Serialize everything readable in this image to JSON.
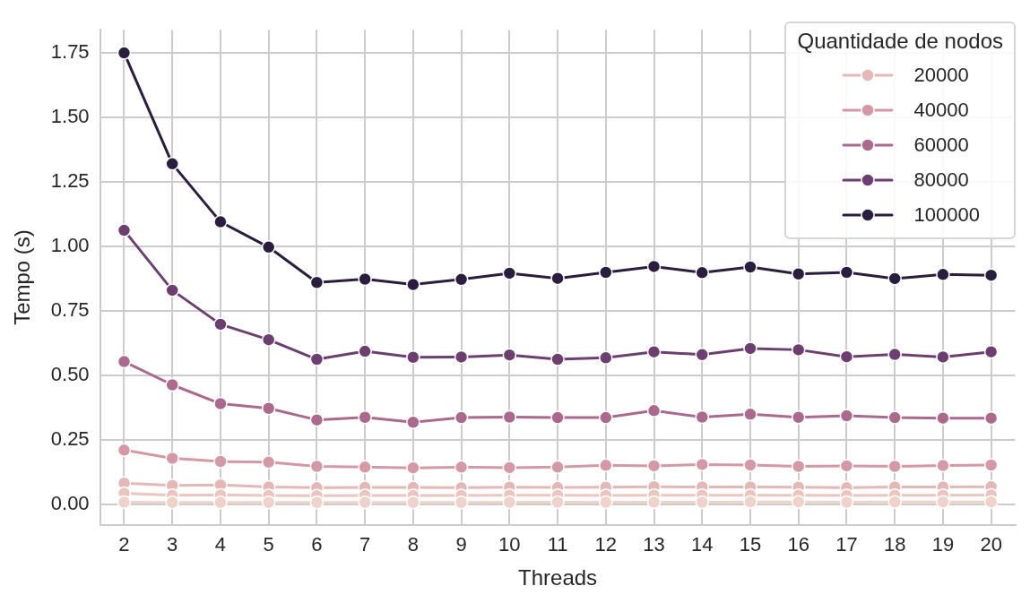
{
  "chart_data": {
    "type": "line",
    "xlabel": "Threads",
    "ylabel": "Tempo (s)",
    "legend_title": "Quantidade de nodos",
    "legend": "top right",
    "grid": true,
    "marker": "circle",
    "line_style": "solid",
    "categories": [
      "2",
      "3",
      "4",
      "5",
      "6",
      "7",
      "8",
      "9",
      "10",
      "11",
      "12",
      "13",
      "14",
      "15",
      "16",
      "17",
      "18",
      "19",
      "20"
    ],
    "ylim": [
      -0.08,
      1.84
    ],
    "yticks": [
      {
        "value": 0,
        "label": "0.00"
      },
      {
        "value": 0.25,
        "label": "0.25"
      },
      {
        "value": 0.5,
        "label": "0.50"
      },
      {
        "value": 0.75,
        "label": "0.75"
      },
      {
        "value": 1,
        "label": "1.00"
      },
      {
        "value": 1.25,
        "label": "1.25"
      },
      {
        "value": 1.5,
        "label": "1.50"
      },
      {
        "value": 1.75,
        "label": "1.75"
      }
    ],
    "series": [
      {
        "color": "#efd3cb",
        "values": [
          0.008,
          0.007,
          0.007,
          0.007,
          0.007,
          0.007,
          0.007,
          0.007,
          0.008,
          0.008,
          0.008,
          0.008,
          0.008,
          0.009,
          0.009,
          0.008,
          0.009,
          0.009,
          0.009
        ]
      },
      {
        "color": "#ebc6c0",
        "values": [
          0.043,
          0.035,
          0.036,
          0.034,
          0.033,
          0.034,
          0.034,
          0.034,
          0.035,
          0.035,
          0.034,
          0.035,
          0.035,
          0.035,
          0.035,
          0.034,
          0.035,
          0.035,
          0.036
        ]
      },
      {
        "name": "20000",
        "color": "#e5b8b8",
        "values": [
          0.082,
          0.073,
          0.075,
          0.067,
          0.064,
          0.065,
          0.065,
          0.064,
          0.066,
          0.065,
          0.066,
          0.068,
          0.067,
          0.067,
          0.066,
          0.064,
          0.067,
          0.067,
          0.068
        ]
      },
      {
        "name": "40000",
        "color": "#d499a5",
        "values": [
          0.21,
          0.178,
          0.166,
          0.163,
          0.147,
          0.144,
          0.141,
          0.144,
          0.142,
          0.144,
          0.151,
          0.149,
          0.154,
          0.152,
          0.147,
          0.149,
          0.147,
          0.15,
          0.152
        ]
      },
      {
        "name": "60000",
        "color": "#ab6a8d",
        "values": [
          0.553,
          0.463,
          0.39,
          0.372,
          0.327,
          0.337,
          0.318,
          0.336,
          0.338,
          0.336,
          0.336,
          0.363,
          0.338,
          0.349,
          0.337,
          0.343,
          0.336,
          0.334,
          0.334
        ]
      },
      {
        "name": "80000",
        "color": "#6c3f70",
        "values": [
          1.062,
          0.83,
          0.698,
          0.638,
          0.562,
          0.593,
          0.57,
          0.571,
          0.579,
          0.562,
          0.568,
          0.591,
          0.58,
          0.604,
          0.599,
          0.572,
          0.581,
          0.571,
          0.591
        ]
      },
      {
        "name": "100000",
        "color": "#2b1d3e",
        "values": [
          1.75,
          1.32,
          1.095,
          0.997,
          0.86,
          0.873,
          0.852,
          0.872,
          0.896,
          0.876,
          0.899,
          0.922,
          0.898,
          0.92,
          0.893,
          0.899,
          0.875,
          0.891,
          0.888
        ]
      }
    ]
  }
}
